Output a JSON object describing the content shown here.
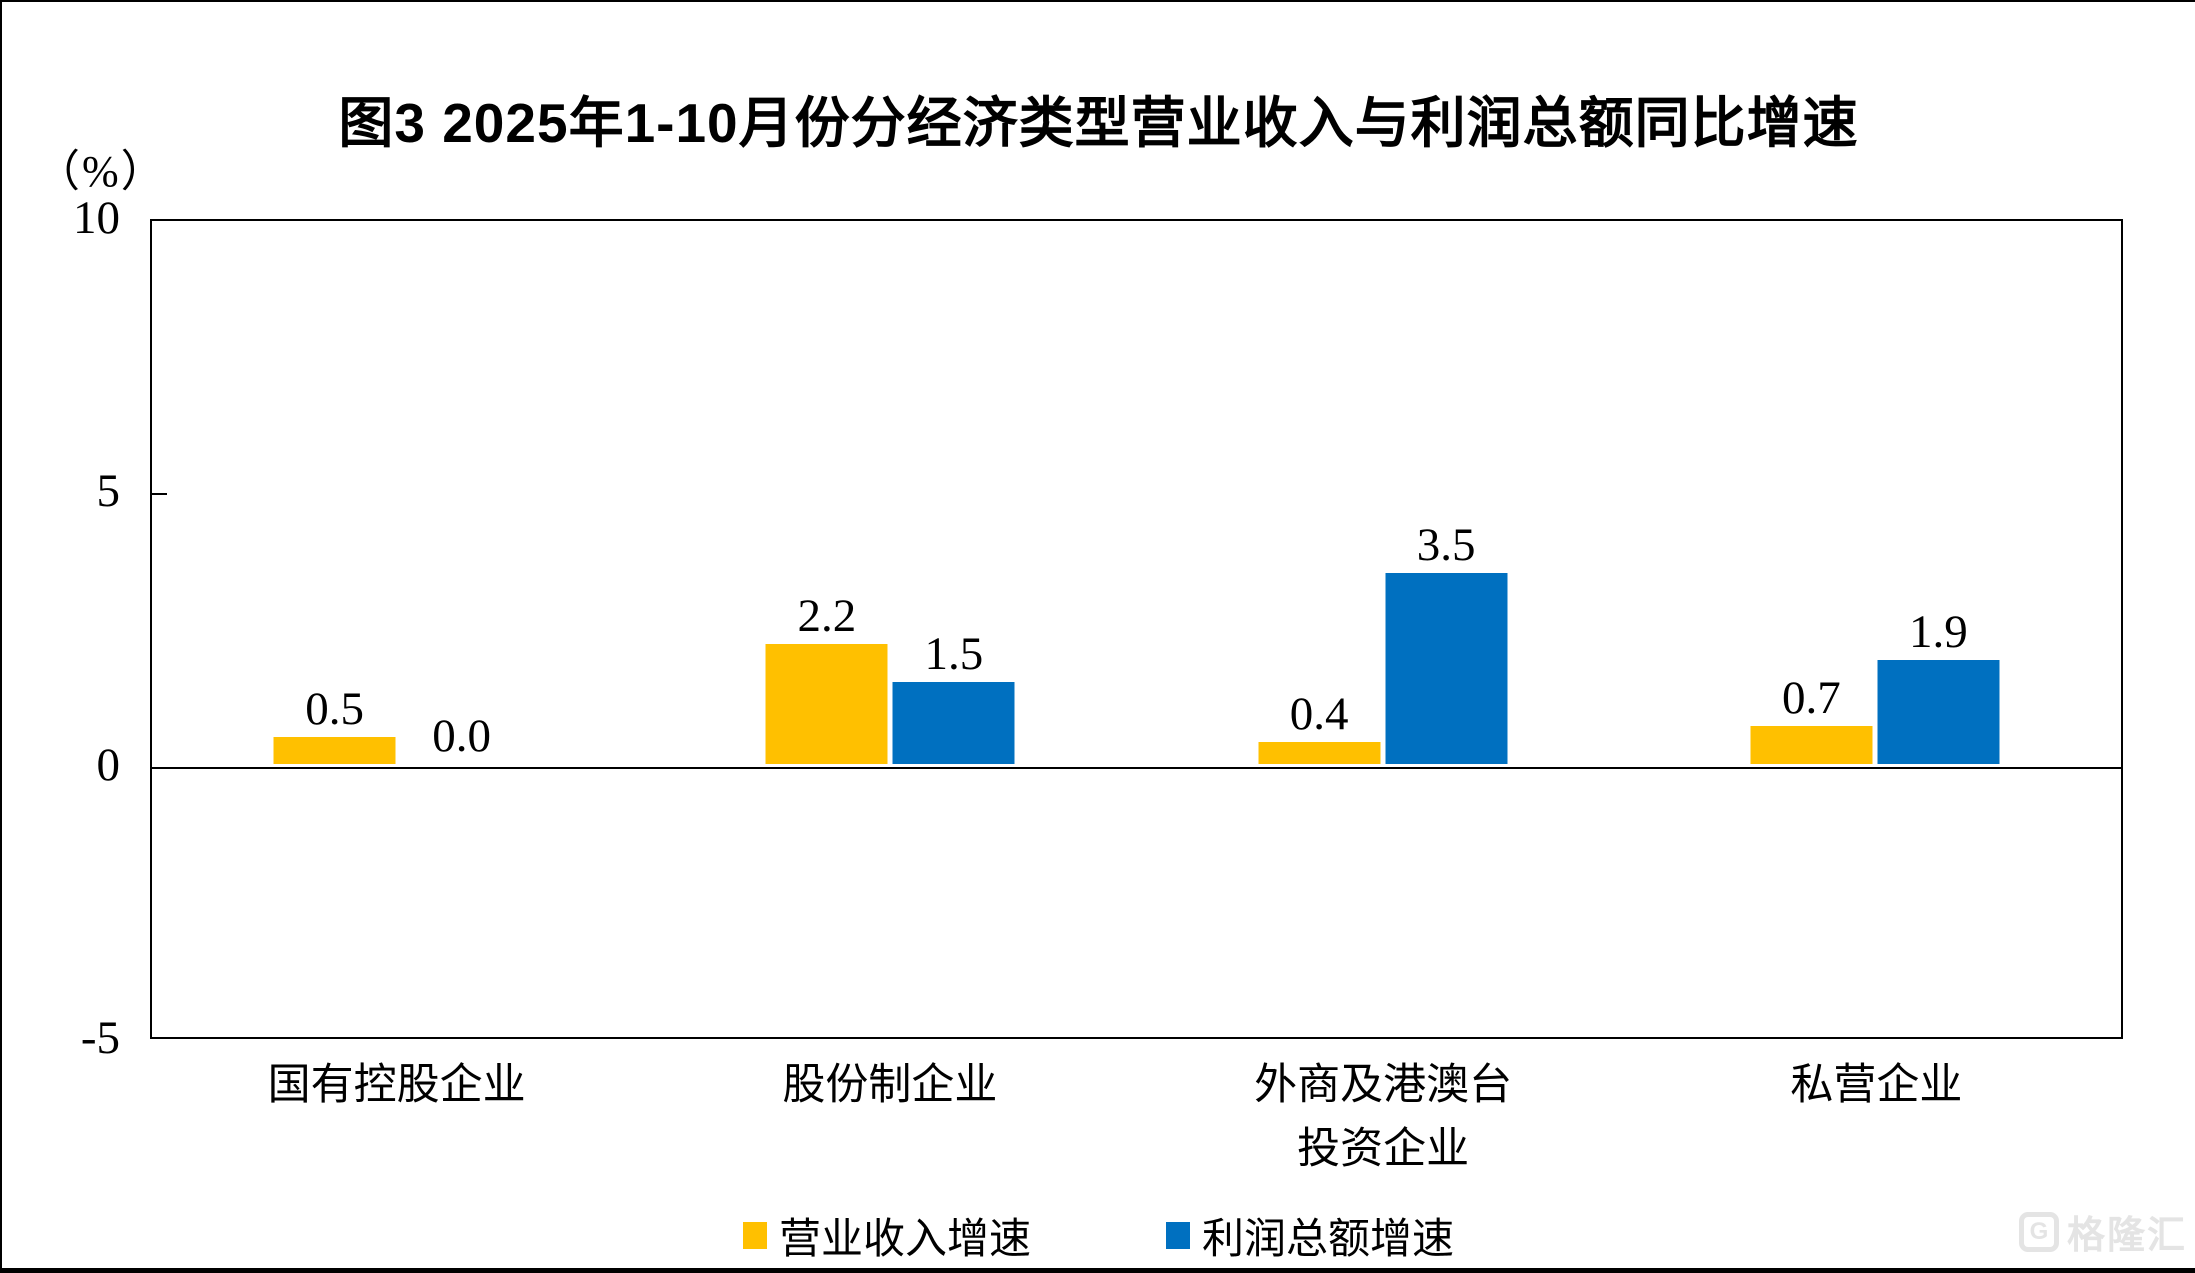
{
  "chart_data": {
    "type": "bar",
    "title": "图3  2025年1-10月份分经济类型营业收入与利润总额同比增速",
    "unit_label": "（%）",
    "categories": [
      "国有控股企业",
      "股份制企业",
      "外商及港澳台\n投资企业",
      "私营企业"
    ],
    "series": [
      {
        "name": "营业收入增速",
        "color": "#FFC000",
        "values": [
          0.5,
          2.2,
          0.4,
          0.7
        ]
      },
      {
        "name": "利润总额增速",
        "color": "#0070C0",
        "values": [
          0.0,
          1.5,
          3.5,
          1.9
        ]
      }
    ],
    "ylim": [
      -5,
      10
    ],
    "yticks": [
      10,
      5,
      0,
      -5
    ],
    "value_label_decimals": 1,
    "grid": false,
    "legend_position": "bottom",
    "axis_color": "#000000",
    "text_color": "#000000"
  },
  "watermark": {
    "logo_letter": "G",
    "text": "格隆汇"
  }
}
